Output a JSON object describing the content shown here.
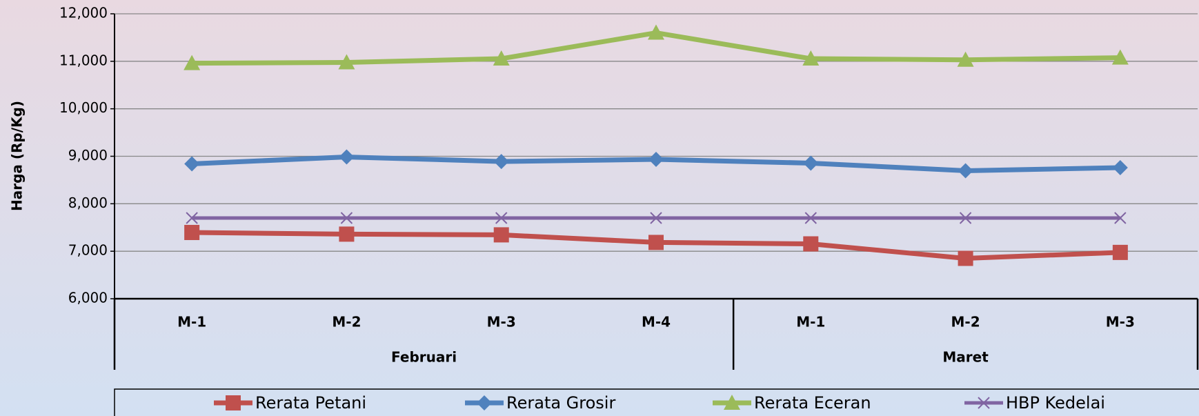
{
  "chart_data": {
    "type": "line",
    "y_label": "Harga (Rp/Kg)",
    "categories": [
      "M-1",
      "M-2",
      "M-3",
      "M-4",
      "M-1",
      "M-2",
      "M-3"
    ],
    "groups": [
      {
        "label": "Februari",
        "span": 4
      },
      {
        "label": "Maret",
        "span": 3
      }
    ],
    "series": [
      {
        "name": "Rerata Petani",
        "color": "#c0504d",
        "marker": "square",
        "values": [
          7395,
          7360,
          7345,
          7185,
          7155,
          6850,
          6975
        ]
      },
      {
        "name": "Rerata Grosir",
        "color": "#4f81bd",
        "marker": "diamond",
        "values": [
          8840,
          8985,
          8890,
          8935,
          8855,
          8695,
          8760
        ]
      },
      {
        "name": "Rerata Eceran",
        "color": "#9bbb59",
        "marker": "triangle",
        "values": [
          10960,
          10975,
          11055,
          11600,
          11055,
          11030,
          11075
        ]
      },
      {
        "name": "HBP Kedelai",
        "color": "#8064a2",
        "marker": "x",
        "values": [
          7700,
          7700,
          7700,
          7700,
          7700,
          7700,
          7700
        ]
      }
    ],
    "ylim": [
      6000,
      12000
    ],
    "yticks": [
      {
        "value": 6000,
        "label": "6,000"
      },
      {
        "value": 7000,
        "label": "7,000"
      },
      {
        "value": 8000,
        "label": "8,000"
      },
      {
        "value": 9000,
        "label": "9,000"
      },
      {
        "value": 10000,
        "label": "10,000"
      },
      {
        "value": 11000,
        "label": "11,000"
      },
      {
        "value": 12000,
        "label": "12,000"
      }
    ],
    "grid": true
  }
}
